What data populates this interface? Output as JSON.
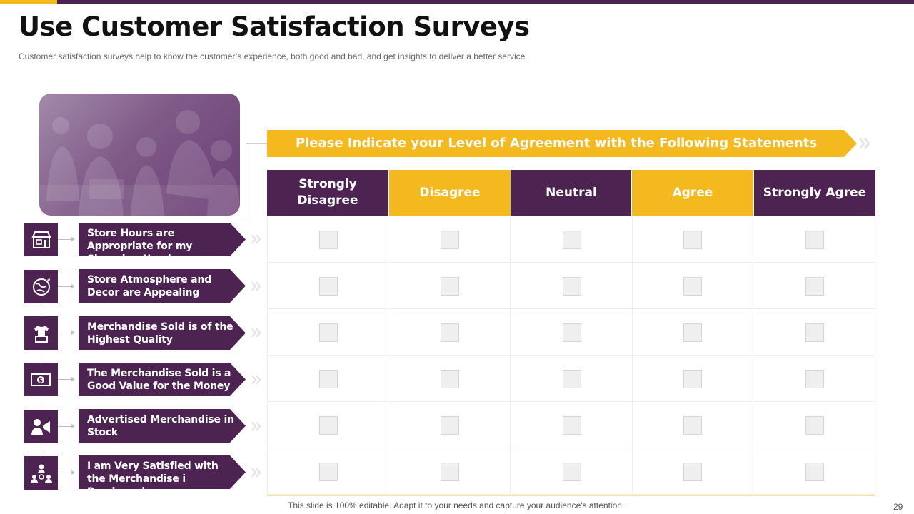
{
  "title": "Use Customer Satisfaction Surveys",
  "subtitle": "Customer satisfaction surveys help to know the customer’s experience, both good and bad, and get insights to deliver  a better service.",
  "banner": "Please Indicate your Level of Agreement with the Following Statements",
  "columns": [
    "Strongly Disagree",
    "Disagree",
    "Neutral",
    "Agree",
    "Strongly Agree"
  ],
  "statements": [
    {
      "label": "Store Hours are Appropriate for my Shopping Needs",
      "icon": "store-icon"
    },
    {
      "label": "Store Atmosphere and Decor are Appealing",
      "icon": "globe-decor-icon"
    },
    {
      "label": "Merchandise Sold is of the Highest Quality",
      "icon": "shirt-box-icon"
    },
    {
      "label": "The Merchandise Sold is a Good Value for the Money",
      "icon": "dollar-bill-icon"
    },
    {
      "label": "Advertised Merchandise in Stock",
      "icon": "megaphone-person-icon"
    },
    {
      "label": "I am Very Satisfied with the Merchandise i Purchased",
      "icon": "users-satisfied-icon"
    }
  ],
  "footer": "This slide is 100% editable. Adapt it to your needs and capture your audience's attention.",
  "page_number": "29",
  "colors": {
    "purple": "#4d2352",
    "gold": "#f5b920"
  }
}
